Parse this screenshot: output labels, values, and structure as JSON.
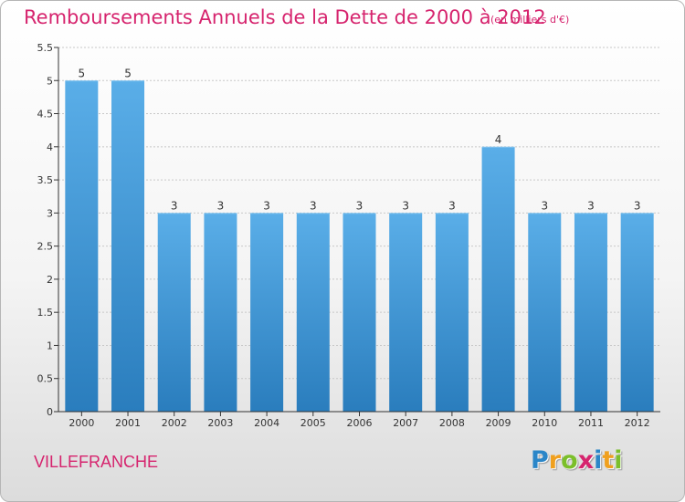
{
  "title": "Remboursements Annuels de la Dette de 2000 à 2012",
  "subtitle": "(en milliers d'€)",
  "location": "VILLEFRANCHE",
  "logo": {
    "text": "Proxiti",
    "letters": [
      {
        "ch": "P",
        "color": "#2b86c8"
      },
      {
        "ch": "r",
        "color": "#f0a01e"
      },
      {
        "ch": "o",
        "color": "#7bbf2a"
      },
      {
        "ch": "x",
        "color": "#d6246e"
      },
      {
        "ch": "i",
        "color": "#2b86c8"
      },
      {
        "ch": "t",
        "color": "#f0a01e"
      },
      {
        "ch": "i",
        "color": "#7bbf2a"
      }
    ]
  },
  "colors": {
    "accent": "#d6246e",
    "bar_top": "#5aaee8",
    "bar_bottom": "#2a7dbd",
    "axis": "#333333",
    "grid": "#c8c8c8"
  },
  "chart_data": {
    "type": "bar",
    "title": "Remboursements Annuels de la Dette de 2000 à 2012",
    "categories": [
      "2000",
      "2001",
      "2002",
      "2003",
      "2004",
      "2005",
      "2006",
      "2007",
      "2008",
      "2009",
      "2010",
      "2011",
      "2012"
    ],
    "values": [
      5,
      5,
      3,
      3,
      3,
      3,
      3,
      3,
      3,
      4,
      3,
      3,
      3
    ],
    "data_labels": [
      "5",
      "5",
      "3",
      "3",
      "3",
      "3",
      "3",
      "3",
      "3",
      "4",
      "3",
      "3",
      "3"
    ],
    "yticks": [
      0,
      0.5,
      1,
      1.5,
      2,
      2.5,
      3,
      3.5,
      4,
      4.5,
      5,
      5.5
    ],
    "ytick_labels": [
      "0",
      "0.5",
      "1",
      "1.5",
      "2",
      "2.5",
      "3",
      "3.5",
      "4",
      "4.5",
      "5",
      "5.5"
    ],
    "ylim": [
      0,
      5.5
    ],
    "xlabel": "",
    "ylabel": "",
    "grid": true
  }
}
